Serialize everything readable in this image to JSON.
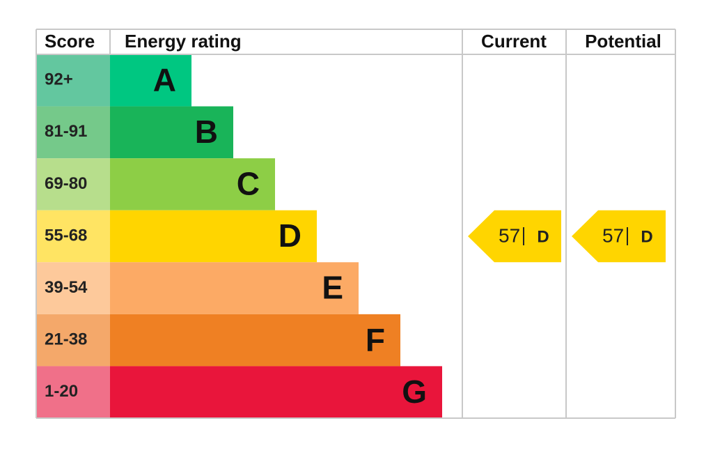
{
  "header": {
    "score": "Score",
    "rating": "Energy rating",
    "current": "Current",
    "potential": "Potential"
  },
  "bands": [
    {
      "score": "92+",
      "letter": "A",
      "color": "#00c781",
      "score_color": "#63c79f"
    },
    {
      "score": "81-91",
      "letter": "B",
      "color": "#19b459",
      "score_color": "#75c98a"
    },
    {
      "score": "69-80",
      "letter": "C",
      "color": "#8dce46",
      "score_color": "#b7de8c"
    },
    {
      "score": "55-68",
      "letter": "D",
      "color": "#ffd500",
      "score_color": "#ffe463"
    },
    {
      "score": "39-54",
      "letter": "E",
      "color": "#fcaa65",
      "score_color": "#fdc99b"
    },
    {
      "score": "21-38",
      "letter": "F",
      "color": "#ef8023",
      "score_color": "#f4a86a"
    },
    {
      "score": "1-20",
      "letter": "G",
      "color": "#e9153b",
      "score_color": "#f07089"
    }
  ],
  "current": {
    "value": 57,
    "letter": "D"
  },
  "potential": {
    "value": 57,
    "letter": "D"
  }
}
